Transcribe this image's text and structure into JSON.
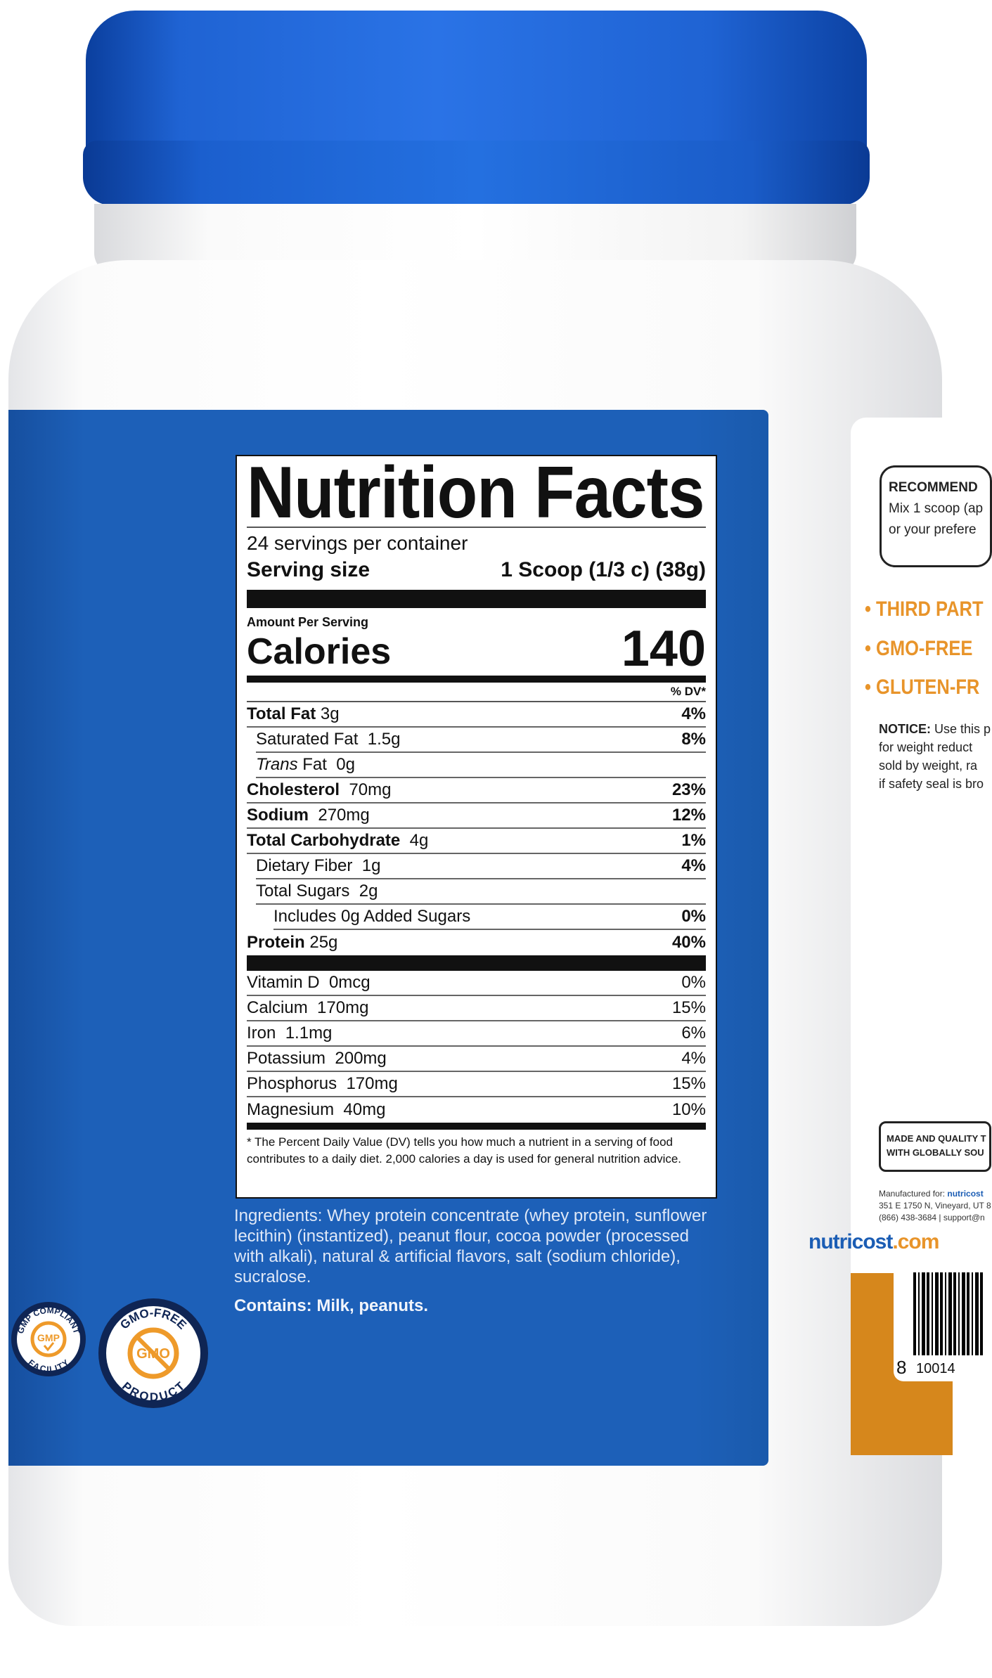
{
  "nutrition_facts": {
    "title": "Nutrition Facts",
    "servings_per_container": "24 servings per container",
    "serving_size_label": "Serving size",
    "serving_size_value": "1 Scoop (1/3 c) (38g)",
    "amount_per_serving": "Amount Per Serving",
    "calories_label": "Calories",
    "calories_value": "140",
    "dv_header": "% DV*",
    "nutrients": [
      {
        "name": "Total Fat",
        "amount": "3g",
        "dv": "4%"
      },
      {
        "name": "Saturated Fat",
        "amount": "1.5g",
        "dv": "8%"
      },
      {
        "name": "Trans",
        "name_suffix": "Fat",
        "amount": "0g",
        "dv": ""
      },
      {
        "name": "Cholesterol",
        "amount": "70mg",
        "dv": "23%"
      },
      {
        "name": "Sodium",
        "amount": "270mg",
        "dv": "12%"
      },
      {
        "name": "Total Carbohydrate",
        "amount": "4g",
        "dv": "1%"
      },
      {
        "name": "Dietary Fiber",
        "amount": "1g",
        "dv": "4%"
      },
      {
        "name": "Total Sugars",
        "amount": "2g",
        "dv": ""
      },
      {
        "name": "Includes 0g Added Sugars",
        "amount": "",
        "dv": "0%"
      },
      {
        "name": "Protein",
        "amount": "25g",
        "dv": "40%"
      }
    ],
    "vitamins": [
      {
        "name": "Vitamin D",
        "amount": "0mcg",
        "dv": "0%"
      },
      {
        "name": "Calcium",
        "amount": "170mg",
        "dv": "15%"
      },
      {
        "name": "Iron",
        "amount": "1.1mg",
        "dv": "6%"
      },
      {
        "name": "Potassium",
        "amount": "200mg",
        "dv": "4%"
      },
      {
        "name": "Phosphorus",
        "amount": "170mg",
        "dv": "15%"
      },
      {
        "name": "Magnesium",
        "amount": "40mg",
        "dv": "10%"
      }
    ],
    "footnote": "* The Percent Daily Value (DV) tells you how much a nutrient in a serving of food contributes to a daily diet. 2,000 calories a day is used for general nutrition advice."
  },
  "ingredients": "Ingredients: Whey protein concentrate (whey protein, sunflower lecithin) (instantized), peanut flour, cocoa powder (processed with alkali), natural & artificial flavors, salt (sodium chloride), sucralose.",
  "contains": "Contains: Milk, peanuts.",
  "badges": {
    "gmp": {
      "top": "GMP COMPLIANT",
      "center": "GMP",
      "bottom": "FACILITY"
    },
    "gmo": {
      "top": "GMO-FREE",
      "center": "GMO",
      "bottom": "PRODUCT"
    }
  },
  "side_label": {
    "recommended_title": "RECOMMEND",
    "recommended_lines": [
      "Mix 1 scoop (ap",
      "or your prefere"
    ],
    "bullets": [
      "• THIRD PART",
      "• GMO-FREE",
      "• GLUTEN-FR"
    ],
    "notice_label": "NOTICE:",
    "notice_lines": [
      " Use this p",
      "for weight reduct",
      "sold by weight, ra",
      "if safety seal is bro"
    ],
    "made_lines": [
      "MADE AND QUALITY T",
      "WITH GLOBALLY SOU"
    ],
    "manufactured_label": "Manufactured for: ",
    "manufactured_brand": "nutricost",
    "address": "351 E 1750 N, Vineyard, UT 8",
    "phone": "(866) 438-3684 | support@n",
    "logo_main": "nutricost",
    "logo_suffix": ".com",
    "barcode_digits": [
      "8",
      "10014"
    ]
  },
  "colors": {
    "cap": "#1f63d3",
    "panel": "#1b5db4",
    "accent_orange": "#e8942a",
    "badge_navy": "#0f2554"
  }
}
